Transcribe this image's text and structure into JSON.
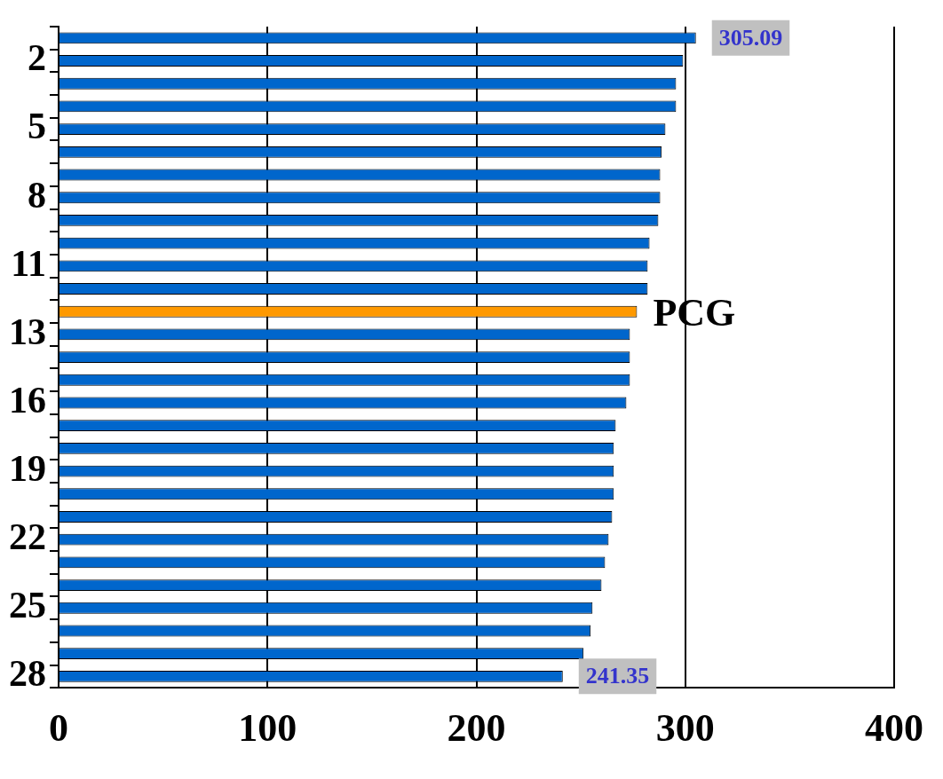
{
  "chart_data": {
    "type": "bar",
    "orientation": "horizontal",
    "categories": [
      null,
      "2",
      null,
      null,
      "5",
      null,
      null,
      "8",
      null,
      null,
      "11",
      null,
      null,
      "13",
      null,
      null,
      "16",
      null,
      null,
      "19",
      null,
      null,
      "22",
      null,
      null,
      "25",
      null,
      null,
      "28"
    ],
    "values": [
      305.09,
      299,
      295.6,
      295.6,
      290.5,
      288.7,
      288,
      288,
      287.1,
      282.9,
      282,
      282,
      276.9,
      273.5,
      273.5,
      273.5,
      271.8,
      266.7,
      265.8,
      265.8,
      265.8,
      265,
      263.3,
      261.6,
      259.9,
      255.6,
      254.7,
      251.3,
      241.35
    ],
    "colors": [
      "#0066cc",
      "#0066cc",
      "#0066cc",
      "#0066cc",
      "#0066cc",
      "#0066cc",
      "#0066cc",
      "#0066cc",
      "#0066cc",
      "#0066cc",
      "#0066cc",
      "#0066cc",
      "#ff9900",
      "#0066cc",
      "#0066cc",
      "#0066cc",
      "#0066cc",
      "#0066cc",
      "#0066cc",
      "#0066cc",
      "#0066cc",
      "#0066cc",
      "#0066cc",
      "#0066cc",
      "#0066cc",
      "#0066cc",
      "#0066cc",
      "#0066cc",
      "#0066cc"
    ],
    "value_labels": [
      "305.09",
      null,
      null,
      null,
      null,
      null,
      null,
      null,
      null,
      null,
      null,
      null,
      null,
      null,
      null,
      null,
      null,
      null,
      null,
      null,
      null,
      null,
      null,
      null,
      null,
      null,
      null,
      null,
      "241.35"
    ],
    "annotations": [
      {
        "text": "PCG",
        "x": 276.9
      }
    ],
    "xlim": [
      0,
      400
    ],
    "xticks": [
      0,
      100,
      200,
      300,
      400
    ],
    "grid": "x",
    "legend": false
  }
}
